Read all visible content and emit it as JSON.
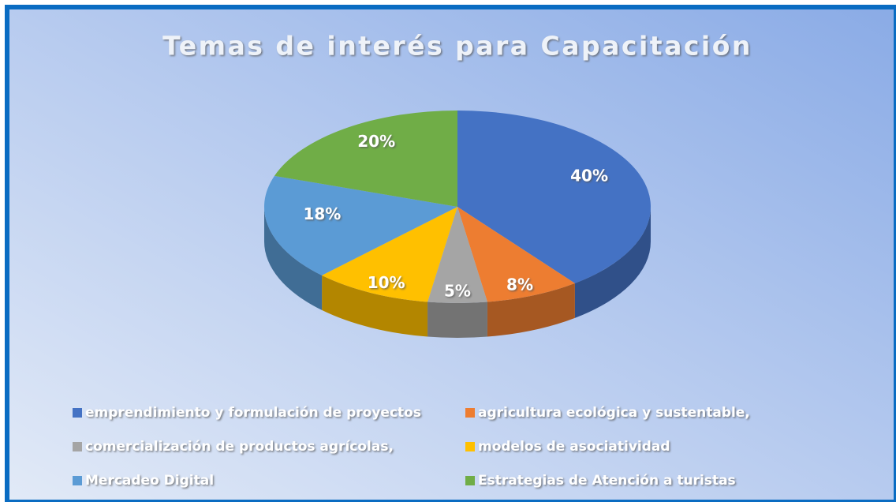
{
  "chart_data": {
    "type": "pie",
    "title": "Temas de interés para Capacitación",
    "categories": [
      "emprendimiento y formulación de proyectos",
      "agricultura ecológica y sustentable,",
      "comercialización de productos agrícolas,",
      "modelos de asociatividad",
      "Mercadeo Digital",
      "Estrategias de Atención a turistas"
    ],
    "values": [
      40,
      8,
      5,
      10,
      18,
      20
    ],
    "value_labels": [
      "40%",
      "8%",
      "5%",
      "10%",
      "18%",
      "20%"
    ],
    "colors": [
      "#4472c4",
      "#ed7d31",
      "#a5a5a5",
      "#ffc000",
      "#5b9bd5",
      "#70ad47"
    ],
    "legend": "bottom"
  }
}
